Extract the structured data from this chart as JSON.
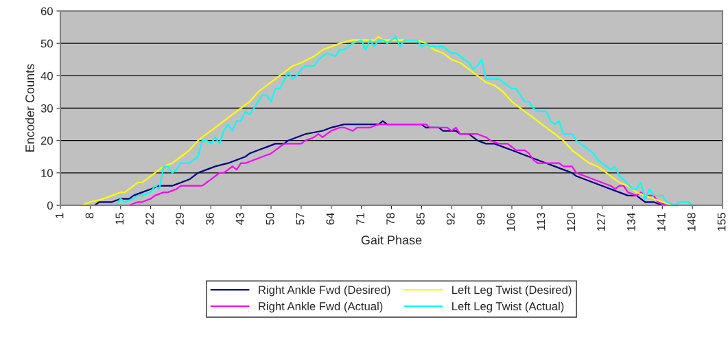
{
  "chart_data": {
    "type": "line",
    "xlabel": "Gait Phase",
    "ylabel": "Encoder Counts",
    "xlim": [
      1,
      155
    ],
    "ylim": [
      0,
      60
    ],
    "xticks": [
      1,
      8,
      15,
      22,
      29,
      36,
      43,
      50,
      57,
      64,
      71,
      78,
      85,
      92,
      99,
      106,
      113,
      120,
      127,
      134,
      141,
      148,
      155
    ],
    "yticks": [
      0,
      10,
      20,
      30,
      40,
      50,
      60
    ],
    "grid": "y",
    "legend": "bottom",
    "marker": "none",
    "line_style": "solid",
    "series": [
      {
        "name": "Right Ankle Fwd (Desired)",
        "color": "#000080",
        "x": [
          1,
          9,
          10,
          13,
          15,
          17,
          18,
          20,
          22,
          24,
          27,
          29,
          31,
          32,
          33,
          35,
          37,
          40,
          42,
          44,
          45,
          47,
          49,
          51,
          53,
          54,
          56,
          58,
          62,
          64,
          67,
          75,
          76,
          77,
          85,
          86,
          89,
          90,
          93,
          94,
          96,
          97,
          98,
          100,
          102,
          104,
          106,
          108,
          110,
          112,
          114,
          116,
          118,
          120,
          121,
          123,
          125,
          127,
          129,
          131,
          133,
          135,
          136,
          137,
          139,
          141,
          155
        ],
        "values": [
          0,
          0,
          1,
          1,
          2,
          2,
          3,
          4,
          5,
          6,
          6,
          7,
          8,
          9,
          10,
          11,
          12,
          13,
          14,
          15,
          16,
          17,
          18,
          19,
          19,
          20,
          21,
          22,
          23,
          24,
          25,
          25,
          26,
          25,
          25,
          24,
          24,
          23,
          23,
          22,
          22,
          21,
          20,
          19,
          19,
          18,
          17,
          16,
          15,
          14,
          13,
          12,
          11,
          10,
          9,
          8,
          7,
          6,
          5,
          4,
          3,
          3,
          2,
          1,
          1,
          0,
          0
        ]
      },
      {
        "name": "Right Ankle Fwd (Actual)",
        "color": "#ff00ff",
        "x": [
          1,
          17,
          19,
          20,
          22,
          23,
          25,
          26,
          28,
          29,
          34,
          35,
          36,
          37,
          38,
          39,
          40,
          41,
          42,
          43,
          44,
          46,
          48,
          50,
          51,
          52,
          53,
          57,
          58,
          60,
          61,
          62,
          63,
          64,
          66,
          67,
          69,
          70,
          73,
          75,
          86,
          87,
          91,
          92,
          93,
          94,
          98,
          100,
          101,
          103,
          105,
          106,
          107,
          109,
          110,
          111,
          112,
          117,
          118,
          120,
          121,
          123,
          125,
          127,
          129,
          130,
          131,
          132,
          133,
          135,
          136,
          137,
          139,
          140,
          142,
          155
        ],
        "values": [
          0,
          0,
          1,
          1,
          2,
          3,
          4,
          4,
          5,
          6,
          6,
          7,
          8,
          9,
          10,
          10,
          11,
          12,
          11,
          13,
          13,
          14,
          15,
          16,
          17,
          18,
          19,
          19,
          20,
          21,
          22,
          21,
          22,
          23,
          24,
          24,
          23,
          24,
          24,
          25,
          25,
          24,
          24,
          23,
          24,
          22,
          22,
          21,
          20,
          19,
          19,
          18,
          17,
          17,
          16,
          14,
          13,
          13,
          12,
          12,
          10,
          9,
          8,
          7,
          6,
          5,
          6,
          6,
          4,
          3,
          4,
          3,
          3,
          1,
          0,
          0
        ]
      },
      {
        "name": "Left Leg Twist (Desired)",
        "color": "#ffff00",
        "x": [
          1,
          6,
          8,
          11,
          13,
          15,
          16,
          17,
          19,
          20,
          21,
          23,
          25,
          27,
          29,
          31,
          33,
          35,
          37,
          39,
          41,
          43,
          45,
          47,
          49,
          51,
          53,
          55,
          57,
          60,
          62,
          64,
          66,
          69,
          74,
          75,
          76,
          84,
          86,
          88,
          90,
          92,
          94,
          96,
          98,
          100,
          102,
          104,
          106,
          108,
          110,
          112,
          114,
          116,
          118,
          120,
          122,
          124,
          126,
          128,
          130,
          131,
          133,
          135,
          137,
          139,
          141,
          144,
          155
        ],
        "values": [
          0,
          0,
          1,
          2,
          3,
          4,
          4,
          5,
          7,
          7,
          8,
          10,
          12,
          13,
          15,
          17,
          20,
          22,
          24,
          26,
          28,
          30,
          32,
          35,
          37,
          39,
          41,
          43,
          44,
          46,
          48,
          49,
          50,
          51,
          51,
          52,
          51,
          51,
          50,
          48,
          47,
          45,
          44,
          42,
          40,
          38,
          37,
          35,
          32,
          30,
          28,
          26,
          24,
          22,
          20,
          17,
          15,
          13,
          12,
          10,
          8,
          7,
          6,
          4,
          3,
          2,
          1,
          0,
          0
        ]
      },
      {
        "name": "Left Leg Twist (Actual)",
        "color": "#00ffff",
        "x": [
          1,
          14,
          15,
          16,
          18,
          19,
          20,
          22,
          23,
          24,
          25,
          26,
          27,
          28,
          29,
          31,
          32,
          33,
          34,
          35,
          36,
          37,
          38,
          39,
          40,
          41,
          42,
          43,
          44,
          45,
          46,
          48,
          49,
          50,
          51,
          52,
          54,
          55,
          56,
          57,
          58,
          60,
          61,
          63,
          65,
          66,
          67,
          69,
          71,
          72,
          73,
          74,
          75,
          76,
          77,
          79,
          80,
          81,
          84,
          85,
          86,
          87,
          90,
          92,
          93,
          95,
          96,
          97,
          98,
          99,
          100,
          103,
          105,
          106,
          107,
          108,
          109,
          110,
          111,
          112,
          114,
          115,
          116,
          117,
          118,
          120,
          121,
          122,
          124,
          125,
          126,
          128,
          129,
          130,
          131,
          132,
          134,
          135,
          136,
          137,
          138,
          139,
          141,
          142,
          144,
          145,
          147,
          148,
          155
        ],
        "values": [
          0,
          0,
          2,
          1,
          2,
          3,
          3,
          4,
          6,
          5,
          12,
          12,
          10,
          11,
          13,
          13,
          14,
          15,
          20,
          20,
          19,
          21,
          19,
          23,
          25,
          23,
          26,
          26,
          29,
          28,
          30,
          34,
          34,
          32,
          36,
          36,
          41,
          39,
          40,
          42,
          43,
          43,
          45,
          47,
          46,
          48,
          48,
          50,
          51,
          48,
          51,
          49,
          51,
          51,
          50,
          52,
          49,
          51,
          51,
          49,
          50,
          49,
          49,
          47,
          47,
          45,
          44,
          42,
          43,
          45,
          39,
          39,
          37,
          36,
          36,
          34,
          32,
          32,
          30,
          29,
          29,
          26,
          25,
          26,
          22,
          22,
          20,
          19,
          17,
          16,
          14,
          12,
          11,
          12,
          9,
          8,
          5,
          5,
          7,
          2,
          5,
          3,
          3,
          1,
          0,
          1,
          1,
          0,
          0
        ]
      }
    ]
  }
}
